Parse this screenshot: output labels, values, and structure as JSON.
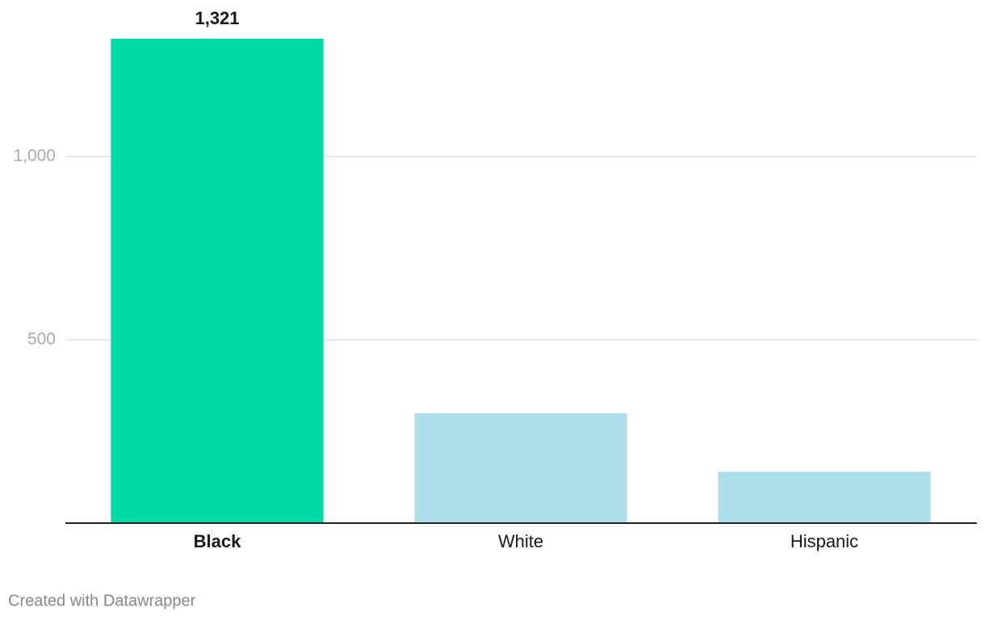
{
  "chart_data": {
    "type": "bar",
    "categories": [
      "Black",
      "White",
      "Hispanic"
    ],
    "values": [
      1321,
      300,
      140
    ],
    "value_labels": [
      "1,321",
      null,
      null
    ],
    "colors": [
      "#00dca6",
      "#afdeeb",
      "#afdeeb"
    ],
    "ylim": [
      0,
      1321
    ],
    "yticks": [
      500,
      {
        "value": 1000,
        "label": "1,000"
      }
    ],
    "grid": true
  },
  "credit": "Created with Datawrapper"
}
